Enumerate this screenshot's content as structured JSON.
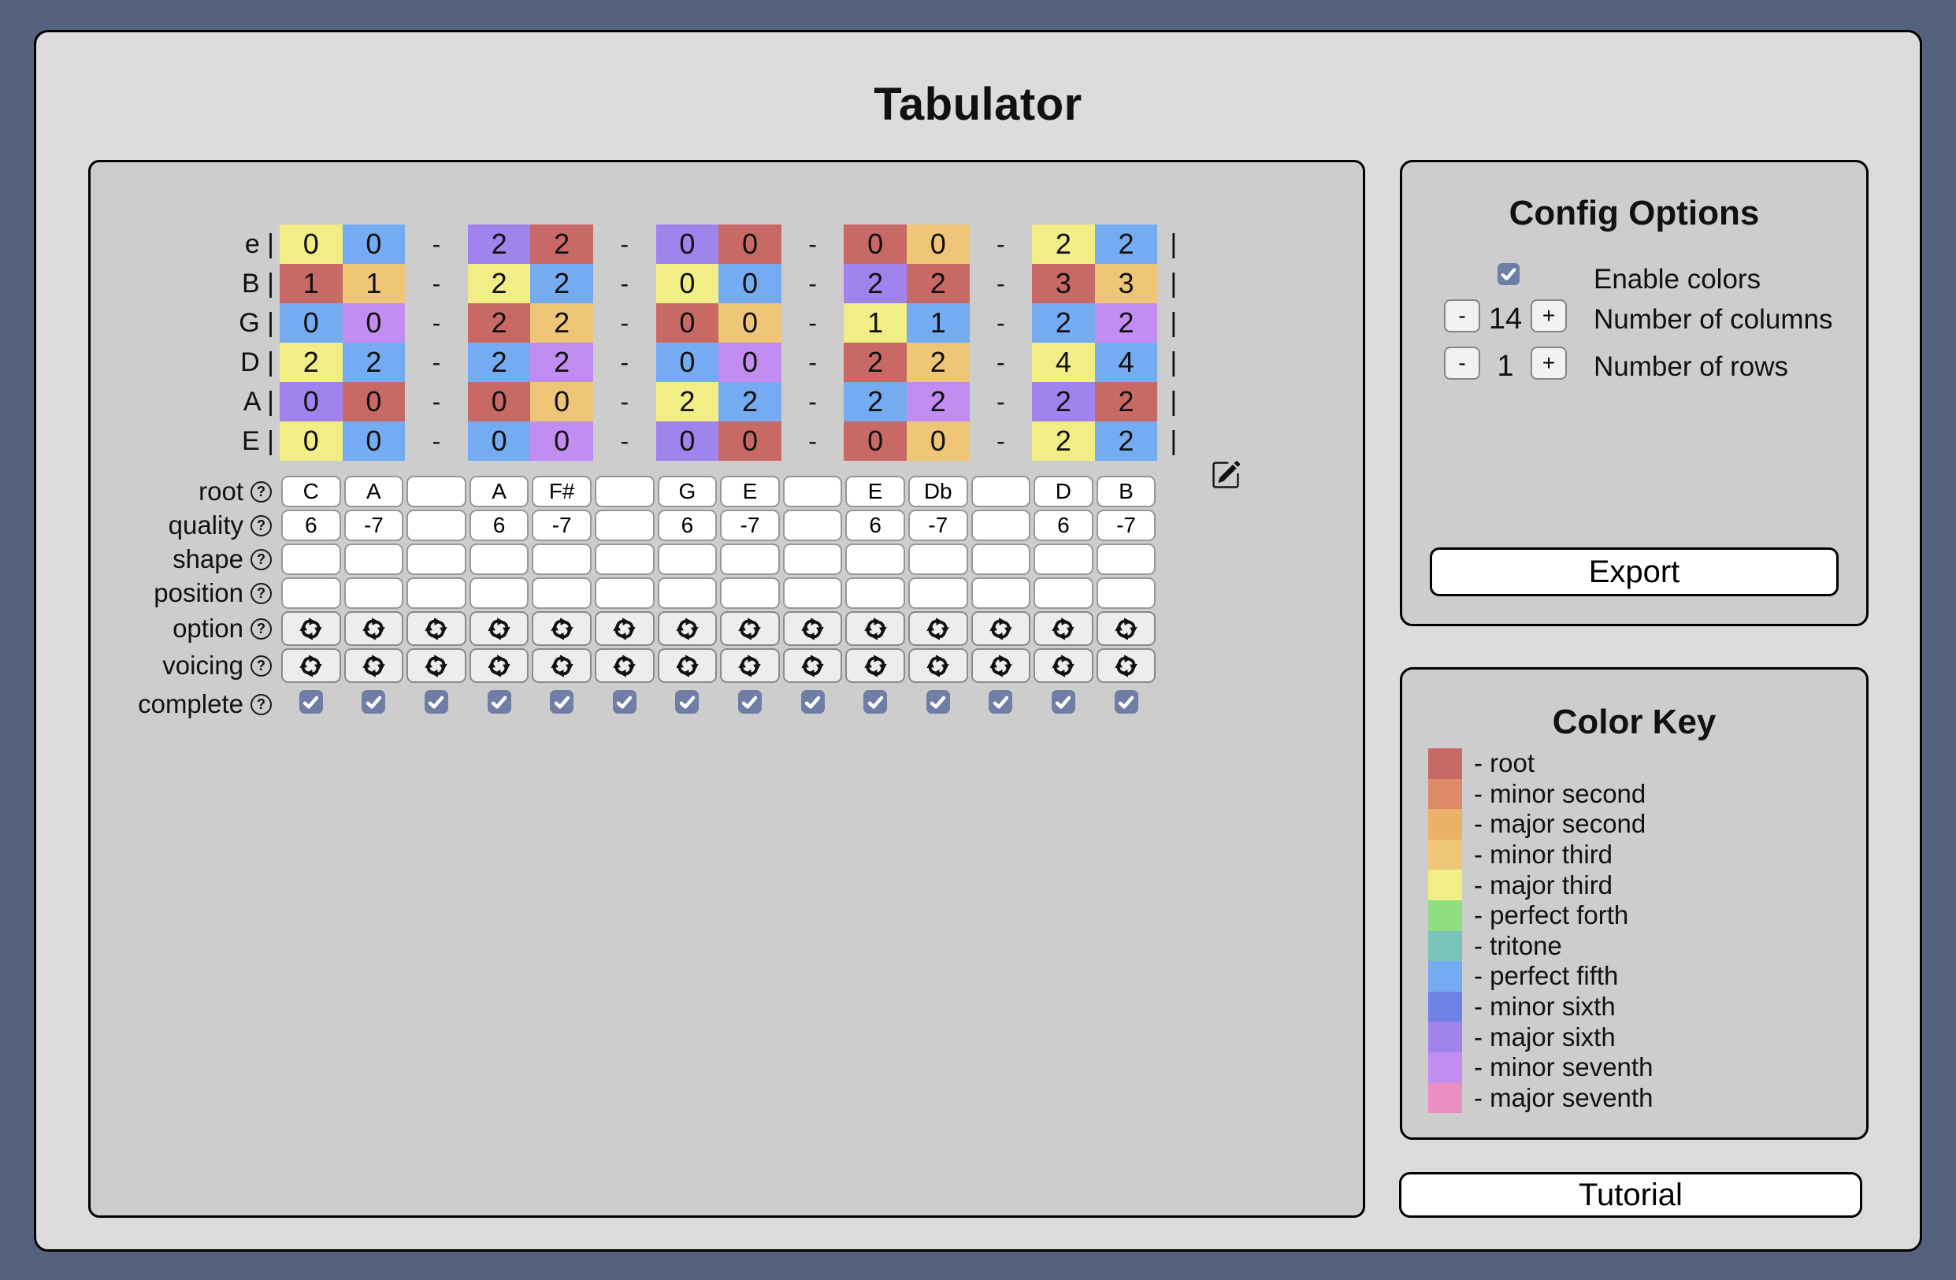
{
  "app": {
    "title": "Tabulator"
  },
  "staff": {
    "strings": [
      "e",
      "B",
      "G",
      "D",
      "A",
      "E"
    ],
    "bar": "|",
    "separator": "-"
  },
  "columns": [
    {
      "type": "chord",
      "root": "C",
      "quality": "6",
      "shape": "",
      "position": "",
      "complete": true,
      "cells": [
        {
          "fret": "0",
          "interval": "major third"
        },
        {
          "fret": "1",
          "interval": "root"
        },
        {
          "fret": "0",
          "interval": "perfect fifth"
        },
        {
          "fret": "2",
          "interval": "major third"
        },
        {
          "fret": "0",
          "interval": "major sixth"
        },
        {
          "fret": "0",
          "interval": "major third"
        }
      ]
    },
    {
      "type": "chord",
      "root": "A",
      "quality": "-7",
      "shape": "",
      "position": "",
      "complete": true,
      "cells": [
        {
          "fret": "0",
          "interval": "perfect fifth"
        },
        {
          "fret": "1",
          "interval": "minor third"
        },
        {
          "fret": "0",
          "interval": "minor seventh"
        },
        {
          "fret": "2",
          "interval": "perfect fifth"
        },
        {
          "fret": "0",
          "interval": "root"
        },
        {
          "fret": "0",
          "interval": "perfect fifth"
        }
      ]
    },
    {
      "type": "separator",
      "root": "",
      "quality": "",
      "shape": "",
      "position": "",
      "complete": true,
      "cells": []
    },
    {
      "type": "chord",
      "root": "A",
      "quality": "6",
      "shape": "",
      "position": "",
      "complete": true,
      "cells": [
        {
          "fret": "2",
          "interval": "major sixth"
        },
        {
          "fret": "2",
          "interval": "major third"
        },
        {
          "fret": "2",
          "interval": "root"
        },
        {
          "fret": "2",
          "interval": "perfect fifth"
        },
        {
          "fret": "0",
          "interval": "root"
        },
        {
          "fret": "0",
          "interval": "perfect fifth"
        }
      ]
    },
    {
      "type": "chord",
      "root": "F#",
      "quality": "-7",
      "shape": "",
      "position": "",
      "complete": true,
      "cells": [
        {
          "fret": "2",
          "interval": "root"
        },
        {
          "fret": "2",
          "interval": "perfect fifth"
        },
        {
          "fret": "2",
          "interval": "minor third"
        },
        {
          "fret": "2",
          "interval": "minor seventh"
        },
        {
          "fret": "0",
          "interval": "minor third"
        },
        {
          "fret": "0",
          "interval": "minor seventh"
        }
      ]
    },
    {
      "type": "separator",
      "root": "",
      "quality": "",
      "shape": "",
      "position": "",
      "complete": true,
      "cells": []
    },
    {
      "type": "chord",
      "root": "G",
      "quality": "6",
      "shape": "",
      "position": "",
      "complete": true,
      "cells": [
        {
          "fret": "0",
          "interval": "major sixth"
        },
        {
          "fret": "0",
          "interval": "major third"
        },
        {
          "fret": "0",
          "interval": "root"
        },
        {
          "fret": "0",
          "interval": "perfect fifth"
        },
        {
          "fret": "2",
          "interval": "major third"
        },
        {
          "fret": "0",
          "interval": "major sixth"
        }
      ]
    },
    {
      "type": "chord",
      "root": "E",
      "quality": "-7",
      "shape": "",
      "position": "",
      "complete": true,
      "cells": [
        {
          "fret": "0",
          "interval": "root"
        },
        {
          "fret": "0",
          "interval": "perfect fifth"
        },
        {
          "fret": "0",
          "interval": "minor third"
        },
        {
          "fret": "0",
          "interval": "minor seventh"
        },
        {
          "fret": "2",
          "interval": "perfect fifth"
        },
        {
          "fret": "0",
          "interval": "root"
        }
      ]
    },
    {
      "type": "separator",
      "root": "",
      "quality": "",
      "shape": "",
      "position": "",
      "complete": true,
      "cells": []
    },
    {
      "type": "chord",
      "root": "E",
      "quality": "6",
      "shape": "",
      "position": "",
      "complete": true,
      "cells": [
        {
          "fret": "0",
          "interval": "root"
        },
        {
          "fret": "2",
          "interval": "major sixth"
        },
        {
          "fret": "1",
          "interval": "major third"
        },
        {
          "fret": "2",
          "interval": "root"
        },
        {
          "fret": "2",
          "interval": "perfect fifth"
        },
        {
          "fret": "0",
          "interval": "root"
        }
      ]
    },
    {
      "type": "chord",
      "root": "Db",
      "quality": "-7",
      "shape": "",
      "position": "",
      "complete": true,
      "cells": [
        {
          "fret": "0",
          "interval": "minor third"
        },
        {
          "fret": "2",
          "interval": "root"
        },
        {
          "fret": "1",
          "interval": "perfect fifth"
        },
        {
          "fret": "2",
          "interval": "minor third"
        },
        {
          "fret": "2",
          "interval": "minor seventh"
        },
        {
          "fret": "0",
          "interval": "minor third"
        }
      ]
    },
    {
      "type": "separator",
      "root": "",
      "quality": "",
      "shape": "",
      "position": "",
      "complete": true,
      "cells": []
    },
    {
      "type": "chord",
      "root": "D",
      "quality": "6",
      "shape": "",
      "position": "",
      "complete": true,
      "cells": [
        {
          "fret": "2",
          "interval": "major third"
        },
        {
          "fret": "3",
          "interval": "root"
        },
        {
          "fret": "2",
          "interval": "perfect fifth"
        },
        {
          "fret": "4",
          "interval": "major third"
        },
        {
          "fret": "2",
          "interval": "major sixth"
        },
        {
          "fret": "2",
          "interval": "major third"
        }
      ]
    },
    {
      "type": "chord",
      "root": "B",
      "quality": "-7",
      "shape": "",
      "position": "",
      "complete": true,
      "cells": [
        {
          "fret": "2",
          "interval": "perfect fifth"
        },
        {
          "fret": "3",
          "interval": "minor third"
        },
        {
          "fret": "2",
          "interval": "minor seventh"
        },
        {
          "fret": "4",
          "interval": "perfect fifth"
        },
        {
          "fret": "2",
          "interval": "root"
        },
        {
          "fret": "2",
          "interval": "perfect fifth"
        }
      ]
    }
  ],
  "table": {
    "row_labels": [
      "root",
      "quality",
      "shape",
      "position",
      "option",
      "voicing",
      "complete"
    ],
    "help_glyph": "?"
  },
  "config": {
    "title": "Config Options",
    "enable_colors": {
      "label": "Enable colors",
      "checked": true
    },
    "columns_stepper": {
      "minus": "-",
      "value": "14",
      "plus": "+",
      "label": "Number of columns"
    },
    "rows_stepper": {
      "minus": "-",
      "value": "1",
      "plus": "+",
      "label": "Number of rows"
    },
    "export_label": "Export"
  },
  "color_key": {
    "title": "Color Key",
    "items": [
      {
        "name": "root",
        "hex": "#c96966"
      },
      {
        "name": "minor second",
        "hex": "#dc8a68"
      },
      {
        "name": "major second",
        "hex": "#ebb169"
      },
      {
        "name": "minor third",
        "hex": "#efc577"
      },
      {
        "name": "major third",
        "hex": "#f0ee85"
      },
      {
        "name": "perfect forth",
        "hex": "#8fdf82"
      },
      {
        "name": "tritone",
        "hex": "#79c4bb"
      },
      {
        "name": "perfect fifth",
        "hex": "#75abf1"
      },
      {
        "name": "minor sixth",
        "hex": "#6c83e5"
      },
      {
        "name": "major sixth",
        "hex": "#a083ec"
      },
      {
        "name": "minor seventh",
        "hex": "#c28df0"
      },
      {
        "name": "major seventh",
        "hex": "#eb8ec2"
      }
    ]
  },
  "tutorial_label": "Tutorial"
}
